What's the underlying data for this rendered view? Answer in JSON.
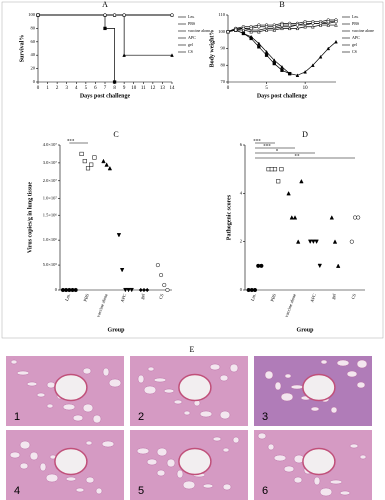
{
  "chart_data": [
    {
      "type": "line",
      "title": "A",
      "step": true,
      "xlabel": "Days post challenge",
      "ylabel": "Survival%",
      "x": [
        0,
        7,
        8,
        9,
        14
      ],
      "xlim": [
        0,
        14
      ],
      "xticks": [
        0,
        1,
        2,
        3,
        4,
        5,
        6,
        7,
        8,
        9,
        10,
        11,
        12,
        13,
        14
      ],
      "ylim": [
        0,
        100
      ],
      "yticks": [
        0,
        20,
        40,
        60,
        80,
        100
      ],
      "series": [
        {
          "name": "Lm.",
          "color": "#000000",
          "marker": "circle-open",
          "values": [
            100,
            100,
            100,
            100,
            100
          ]
        },
        {
          "name": "PBS",
          "color": "#000000",
          "marker": "square",
          "values": [
            100,
            80,
            0,
            null,
            null
          ]
        },
        {
          "name": "vaccine alone",
          "color": "#000000",
          "marker": "triangle",
          "values": [
            100,
            100,
            100,
            40,
            40
          ]
        },
        {
          "name": "APC",
          "color": "#000000",
          "marker": "diamond-open",
          "values": [
            100,
            100,
            100,
            100,
            100
          ]
        },
        {
          "name": "gel",
          "color": "#000000",
          "marker": "triangle-open",
          "values": [
            100,
            100,
            100,
            100,
            100
          ]
        },
        {
          "name": "CS",
          "color": "#000000",
          "marker": "circle-open",
          "values": [
            100,
            100,
            100,
            100,
            100
          ]
        }
      ]
    },
    {
      "type": "line",
      "title": "B",
      "step": false,
      "xlabel": "Days post challenge",
      "ylabel": "Body weight%",
      "x": [
        0,
        1,
        2,
        3,
        4,
        5,
        6,
        7,
        8,
        9,
        10,
        11,
        12,
        13,
        14
      ],
      "xlim": [
        0,
        14
      ],
      "xticks": [
        0,
        5,
        10
      ],
      "ylim": [
        70,
        110
      ],
      "yticks": [
        70,
        80,
        90,
        100,
        110
      ],
      "series": [
        {
          "name": "Lm.",
          "color": "#000000",
          "marker": "circle-open",
          "values": [
            100,
            102,
            103,
            103,
            104,
            104,
            104,
            105,
            105,
            105,
            106,
            106,
            106,
            107,
            107
          ]
        },
        {
          "name": "PBS",
          "color": "#000000",
          "marker": "square",
          "values": [
            100,
            101,
            99,
            96,
            91,
            86,
            81,
            77,
            75,
            null,
            null,
            null,
            null,
            null,
            null
          ]
        },
        {
          "name": "vaccine alone",
          "color": "#000000",
          "marker": "triangle",
          "values": [
            100,
            101,
            99,
            97,
            93,
            88,
            83,
            79,
            75,
            74,
            76,
            80,
            85,
            90,
            94
          ]
        },
        {
          "name": "APC",
          "color": "#000000",
          "marker": "diamond-open",
          "values": [
            100,
            102,
            102,
            101,
            101,
            102,
            102,
            103,
            103,
            104,
            104,
            105,
            105,
            105,
            106
          ]
        },
        {
          "name": "gel",
          "color": "#000000",
          "marker": "triangle-open",
          "values": [
            100,
            101,
            101,
            100,
            100,
            101,
            101,
            102,
            102,
            102,
            103,
            103,
            104,
            104,
            104
          ]
        },
        {
          "name": "CS",
          "color": "#000000",
          "marker": "circle-open",
          "values": [
            100,
            101,
            102,
            102,
            103,
            103,
            103,
            104,
            104,
            104,
            105,
            105,
            105,
            106,
            106
          ]
        }
      ]
    },
    {
      "type": "dot",
      "title": "C",
      "xlabel": "Group",
      "ylabel": "Virus copies/g in lung tissue",
      "categories": [
        "Lm.",
        "PBS",
        "vaccine alone",
        "APC",
        "gel",
        "CS"
      ],
      "markers": [
        "circle",
        "square-open",
        "triangle",
        "triangle-down",
        "diamond",
        "circle-open"
      ],
      "values": [
        [
          0,
          0,
          0,
          0,
          0
        ],
        [
          35000000,
          31000000,
          27000000,
          29000000,
          33000000
        ],
        [
          31000000,
          29000000,
          27000000
        ],
        [
          1100000,
          400000,
          0,
          0,
          0
        ],
        [
          0,
          0,
          0
        ],
        [
          500000,
          300000,
          100000,
          0
        ]
      ],
      "ylim": [
        0,
        40000000
      ],
      "ybreak": [
        1600000,
        10000000
      ],
      "yticks": [
        {
          "value": 0,
          "label": "0"
        },
        {
          "value": 500000,
          "label": "5.0×10⁵"
        },
        {
          "value": 1000000,
          "label": "1.0×10⁶"
        },
        {
          "value": 1500000,
          "label": "1.5×10⁶"
        },
        {
          "value": 10000000,
          "label": "1.0×10⁷"
        },
        {
          "value": 20000000,
          "label": "2.0×10⁷"
        },
        {
          "value": 30000000,
          "label": "3.0×10⁷"
        },
        {
          "value": 40000000,
          "label": "4.0×10⁷"
        }
      ],
      "annotations": [
        "***"
      ]
    },
    {
      "type": "dot",
      "title": "D",
      "xlabel": "Group",
      "ylabel": "Pathogenic scores",
      "categories": [
        "Lm.",
        "PBS",
        "vaccine alone",
        "APC",
        "gel",
        "CS"
      ],
      "markers": [
        "circle",
        "square-open",
        "triangle",
        "triangle-down",
        "triangle",
        "circle-open"
      ],
      "values": [
        [
          0,
          0,
          0,
          1,
          1
        ],
        [
          5,
          5,
          5,
          4.5,
          5
        ],
        [
          4,
          3,
          3,
          2,
          4.5
        ],
        [
          2,
          2,
          2,
          1
        ],
        [
          3,
          2,
          1
        ],
        [
          2,
          3,
          3
        ]
      ],
      "ylim": [
        0,
        6
      ],
      "yticks": [
        0,
        2,
        4,
        6
      ],
      "annotations": [
        "***",
        "***",
        "*",
        "**"
      ]
    }
  ],
  "images": {
    "label": "E",
    "tiles": [
      "1",
      "2",
      "3",
      "4",
      "5",
      "6"
    ]
  }
}
